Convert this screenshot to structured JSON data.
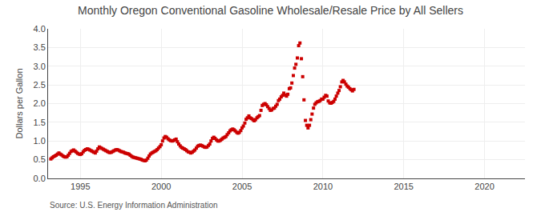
{
  "chart_data": {
    "type": "scatter",
    "title": "Monthly Oregon Conventional Gasoline Wholesale/Resale Price by All Sellers",
    "y_label": "Dollars per Gallon",
    "annotations": [
      "Source: U.S. Energy Information Administration"
    ],
    "color": "#cc0000",
    "marker": "square",
    "grid": true,
    "xlim": [
      1993.0,
      2022.5
    ],
    "ylim": [
      0.0,
      4.0
    ],
    "xticks": [
      1995,
      2000,
      2005,
      2010,
      2015,
      2020
    ],
    "yticks": [
      {
        "value": 0.0,
        "label": "0.0"
      },
      0.5,
      {
        "value": 1.0,
        "label": "1.0"
      },
      1.5,
      {
        "value": 2.0,
        "label": "2.0"
      },
      2.5,
      {
        "value": 3.0,
        "label": "3.0"
      },
      3.5,
      {
        "value": 4.0,
        "label": "4.0"
      }
    ],
    "x": [
      1993.17,
      1993.25,
      1993.33,
      1993.42,
      1993.5,
      1993.58,
      1993.67,
      1993.75,
      1993.83,
      1993.92,
      1994.0,
      1994.08,
      1994.17,
      1994.25,
      1994.33,
      1994.42,
      1994.5,
      1994.58,
      1994.67,
      1994.75,
      1994.83,
      1994.92,
      1995.0,
      1995.08,
      1995.17,
      1995.25,
      1995.33,
      1995.42,
      1995.5,
      1995.58,
      1995.67,
      1995.75,
      1995.83,
      1995.92,
      1996.0,
      1996.08,
      1996.17,
      1996.25,
      1996.33,
      1996.42,
      1996.5,
      1996.58,
      1996.67,
      1996.75,
      1996.83,
      1996.92,
      1997.0,
      1997.08,
      1997.17,
      1997.25,
      1997.33,
      1997.42,
      1997.5,
      1997.58,
      1997.67,
      1997.75,
      1997.83,
      1997.92,
      1998.0,
      1998.08,
      1998.17,
      1998.25,
      1998.33,
      1998.42,
      1998.5,
      1998.58,
      1998.67,
      1998.75,
      1998.83,
      1998.92,
      1999.0,
      1999.08,
      1999.17,
      1999.25,
      1999.33,
      1999.42,
      1999.5,
      1999.58,
      1999.67,
      1999.75,
      1999.83,
      1999.92,
      2000.0,
      2000.08,
      2000.17,
      2000.25,
      2000.33,
      2000.42,
      2000.5,
      2000.58,
      2000.67,
      2000.75,
      2000.83,
      2000.92,
      2001.0,
      2001.08,
      2001.17,
      2001.25,
      2001.33,
      2001.42,
      2001.5,
      2001.58,
      2001.67,
      2001.75,
      2001.83,
      2001.92,
      2002.0,
      2002.08,
      2002.17,
      2002.25,
      2002.33,
      2002.42,
      2002.5,
      2002.58,
      2002.67,
      2002.75,
      2002.83,
      2002.92,
      2003.0,
      2003.08,
      2003.17,
      2003.25,
      2003.33,
      2003.42,
      2003.5,
      2003.58,
      2003.67,
      2003.75,
      2003.83,
      2003.92,
      2004.0,
      2004.08,
      2004.17,
      2004.25,
      2004.33,
      2004.42,
      2004.5,
      2004.58,
      2004.67,
      2004.75,
      2004.83,
      2004.92,
      2005.0,
      2005.08,
      2005.17,
      2005.25,
      2005.33,
      2005.42,
      2005.5,
      2005.58,
      2005.67,
      2005.75,
      2005.83,
      2005.92,
      2006.0,
      2006.08,
      2006.17,
      2006.25,
      2006.33,
      2006.42,
      2006.5,
      2006.58,
      2006.67,
      2006.75,
      2006.83,
      2006.92,
      2007.0,
      2007.08,
      2007.17,
      2007.25,
      2007.33,
      2007.42,
      2007.5,
      2007.58,
      2007.67,
      2007.75,
      2007.83,
      2007.92,
      2008.0,
      2008.08,
      2008.17,
      2008.25,
      2008.33,
      2008.42,
      2008.5,
      2008.58,
      2008.67,
      2008.75,
      2008.83,
      2008.92,
      2009.0,
      2009.08,
      2009.17,
      2009.25,
      2009.33,
      2009.42,
      2009.5,
      2009.58,
      2009.67,
      2009.75,
      2009.83,
      2009.92,
      2010.0,
      2010.08,
      2010.17,
      2010.25,
      2010.33,
      2010.42,
      2010.5,
      2010.58,
      2010.67,
      2010.75,
      2010.83,
      2010.92,
      2011.0,
      2011.08,
      2011.17,
      2011.25,
      2011.33,
      2011.42,
      2011.5,
      2011.58,
      2011.67,
      2011.75,
      2011.83,
      2011.92
    ],
    "values": [
      0.52,
      0.55,
      0.58,
      0.6,
      0.62,
      0.65,
      0.68,
      0.65,
      0.63,
      0.6,
      0.58,
      0.57,
      0.58,
      0.62,
      0.67,
      0.72,
      0.74,
      0.76,
      0.73,
      0.7,
      0.67,
      0.65,
      0.64,
      0.66,
      0.71,
      0.75,
      0.77,
      0.79,
      0.78,
      0.76,
      0.74,
      0.72,
      0.7,
      0.68,
      0.73,
      0.79,
      0.84,
      0.82,
      0.8,
      0.78,
      0.76,
      0.74,
      0.72,
      0.7,
      0.69,
      0.7,
      0.72,
      0.74,
      0.76,
      0.77,
      0.76,
      0.74,
      0.72,
      0.71,
      0.7,
      0.68,
      0.67,
      0.66,
      0.65,
      0.62,
      0.59,
      0.57,
      0.56,
      0.55,
      0.54,
      0.53,
      0.52,
      0.51,
      0.49,
      0.48,
      0.47,
      0.49,
      0.54,
      0.6,
      0.65,
      0.68,
      0.7,
      0.72,
      0.74,
      0.77,
      0.81,
      0.85,
      0.9,
      1.0,
      1.08,
      1.12,
      1.1,
      1.06,
      1.03,
      1.01,
      1.0,
      1.01,
      1.03,
      1.05,
      0.98,
      0.92,
      0.87,
      0.83,
      0.81,
      0.79,
      0.77,
      0.74,
      0.71,
      0.7,
      0.68,
      0.7,
      0.73,
      0.76,
      0.81,
      0.86,
      0.88,
      0.89,
      0.88,
      0.86,
      0.84,
      0.83,
      0.84,
      0.88,
      0.92,
      1.0,
      1.07,
      1.1,
      1.07,
      1.03,
      1.0,
      1.0,
      1.02,
      1.05,
      1.08,
      1.1,
      1.12,
      1.17,
      1.22,
      1.27,
      1.3,
      1.32,
      1.3,
      1.27,
      1.23,
      1.21,
      1.23,
      1.28,
      1.35,
      1.4,
      1.48,
      1.58,
      1.62,
      1.67,
      1.62,
      1.6,
      1.57,
      1.54,
      1.57,
      1.62,
      1.65,
      1.68,
      1.82,
      1.95,
      1.98,
      2.0,
      1.97,
      1.92,
      1.87,
      1.82,
      1.83,
      1.87,
      1.88,
      1.93,
      1.98,
      2.08,
      2.12,
      2.18,
      2.22,
      2.28,
      2.23,
      2.2,
      2.25,
      2.4,
      2.42,
      2.55,
      2.75,
      2.95,
      3.05,
      3.22,
      3.55,
      3.62,
      3.2,
      2.72,
      2.1,
      1.55,
      1.42,
      1.35,
      1.42,
      1.57,
      1.72,
      1.88,
      1.98,
      2.02,
      2.05,
      2.06,
      2.08,
      2.12,
      2.12,
      2.17,
      2.22,
      2.2,
      2.07,
      2.02,
      2.01,
      2.03,
      2.06,
      2.12,
      2.2,
      2.28,
      2.35,
      2.45,
      2.58,
      2.62,
      2.58,
      2.52,
      2.47,
      2.44,
      2.4,
      2.37,
      2.34,
      2.38
    ]
  }
}
